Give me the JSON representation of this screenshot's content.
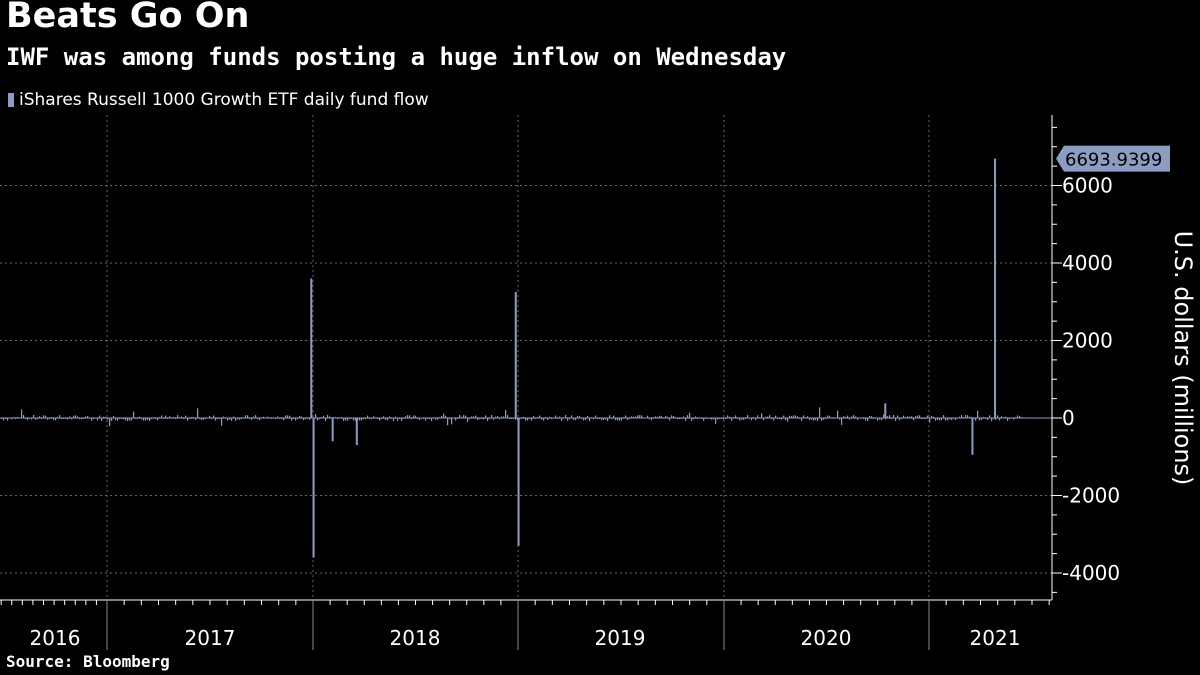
{
  "title": "Beats Go On",
  "subtitle": "IWF was among funds posting a huge inflow on Wednesday",
  "source": "Source: Bloomberg",
  "colors": {
    "background": "#000000",
    "series": "#8c9dc4",
    "grid": "#666666",
    "text": "#ffffff"
  },
  "chart_data": {
    "type": "bar",
    "title": "Beats Go On",
    "subtitle": "IWF was among funds posting a huge inflow on Wednesday",
    "legend": [
      "iShares Russell 1000 Growth ETF daily fund flow"
    ],
    "legend_position": "top-left",
    "ylabel": "U.S. dollars (millions)",
    "ylim": [
      -4500,
      7500
    ],
    "yticks": [
      -4000,
      -2000,
      0,
      2000,
      4000,
      6000
    ],
    "ytick_labels": [
      "-4000",
      "-2000",
      "0",
      "2000",
      "4000",
      "6000"
    ],
    "x_categories": [
      "2016",
      "2017",
      "2018",
      "2019",
      "2020",
      "2021"
    ],
    "grid": true,
    "last_value_label": "6693.9399",
    "series": [
      {
        "name": "iShares Russell 1000 Growth ETF daily fund flow",
        "notable_points": [
          {
            "date": "2017-12-29",
            "value": 3600
          },
          {
            "date": "2018-01-02",
            "value": -3600
          },
          {
            "date": "2018-02-05",
            "value": -600
          },
          {
            "date": "2018-03-20",
            "value": -700
          },
          {
            "date": "2018-12-28",
            "value": 3250
          },
          {
            "date": "2019-01-02",
            "value": -3300
          },
          {
            "date": "2020-10-15",
            "value": 380
          },
          {
            "date": "2021-03-19",
            "value": -950
          },
          {
            "date": "2021-04-28",
            "value": 6693.9399
          }
        ]
      }
    ]
  }
}
